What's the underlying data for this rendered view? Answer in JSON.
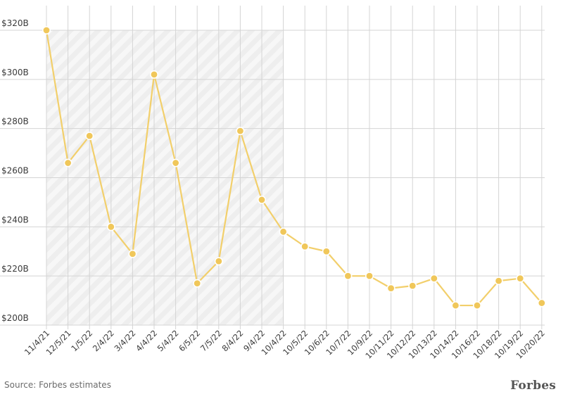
{
  "chart_data": {
    "type": "line",
    "categories": [
      "11/4/21",
      "12/5/21",
      "1/5/22",
      "2/4/22",
      "3/4/22",
      "4/4/22",
      "5/4/22",
      "6/5/22",
      "7/5/22",
      "8/4/22",
      "9/4/22",
      "10/4/22",
      "10/5/22",
      "10/6/22",
      "10/7/22",
      "10/9/22",
      "10/11/22",
      "10/12/22",
      "10/13/22",
      "10/14/22",
      "10/16/22",
      "10/18/22",
      "10/19/22",
      "10/20/22"
    ],
    "values": [
      320,
      266,
      277,
      240,
      229,
      302,
      266,
      217,
      226,
      279,
      251,
      238,
      232,
      230,
      220,
      220,
      215,
      216,
      219,
      208,
      208,
      218,
      219,
      209
    ],
    "yticks": [
      "$200B",
      "$220B",
      "$240B",
      "$260B",
      "$280B",
      "$300B",
      "$320B"
    ],
    "ytick_values": [
      200,
      220,
      240,
      260,
      280,
      300,
      320
    ],
    "ylim": [
      200,
      320
    ],
    "shaded_range": [
      "11/4/21",
      "10/4/22"
    ],
    "grid": true,
    "line_color": "#f2cf6b",
    "marker_color": "#f0c75a"
  },
  "source": "Source: Forbes estimates",
  "brand": "Forbes"
}
